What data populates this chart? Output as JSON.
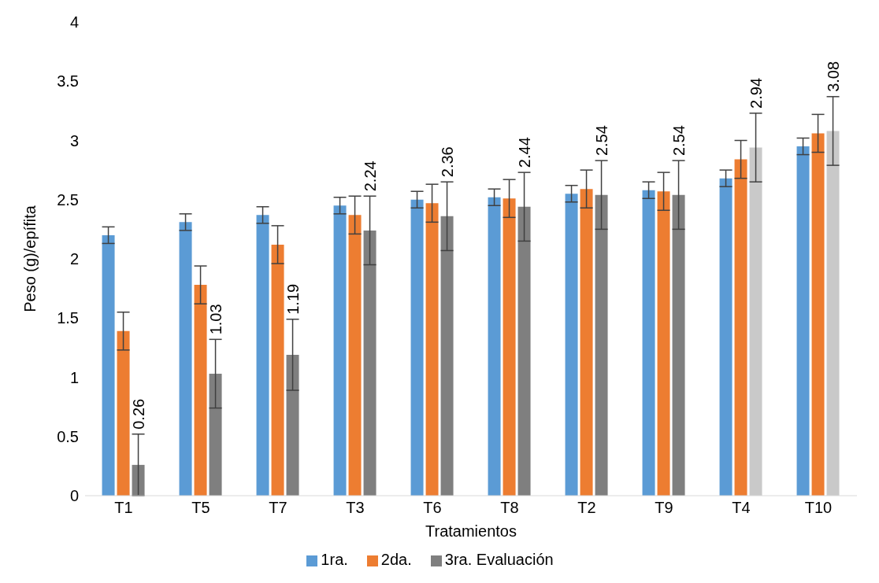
{
  "chart_data": {
    "type": "bar",
    "xlabel": "Tratamientos",
    "ylabel": "Peso (g)/epífita",
    "categories": [
      "T1",
      "T5",
      "T7",
      "T3",
      "T6",
      "T8",
      "T2",
      "T9",
      "T4",
      "T10"
    ],
    "ylim": [
      0,
      4
    ],
    "yticks": [
      0,
      0.5,
      1,
      1.5,
      2,
      2.5,
      3,
      3.5,
      4
    ],
    "grid": false,
    "legend": "bottom",
    "series": [
      {
        "name": "1ra.",
        "color": "#5b9bd5",
        "values": [
          2.2,
          2.31,
          2.37,
          2.45,
          2.5,
          2.52,
          2.55,
          2.58,
          2.68,
          2.95
        ],
        "errors": [
          0.07,
          0.07,
          0.07,
          0.07,
          0.07,
          0.07,
          0.07,
          0.07,
          0.07,
          0.07
        ]
      },
      {
        "name": "2da.",
        "color": "#ed7d31",
        "values": [
          1.39,
          1.78,
          2.12,
          2.37,
          2.47,
          2.51,
          2.59,
          2.57,
          2.84,
          3.06
        ],
        "errors": [
          0.16,
          0.16,
          0.16,
          0.16,
          0.16,
          0.16,
          0.16,
          0.16,
          0.16,
          0.16
        ]
      },
      {
        "name": "3ra. Evaluación",
        "color": "#7f7f7f",
        "colors": [
          "#7f7f7f",
          "#7f7f7f",
          "#7f7f7f",
          "#7f7f7f",
          "#7f7f7f",
          "#7f7f7f",
          "#7f7f7f",
          "#7f7f7f",
          "#c9c9c9",
          "#c9c9c9"
        ],
        "values": [
          0.26,
          1.03,
          1.19,
          2.24,
          2.36,
          2.44,
          2.54,
          2.54,
          2.94,
          3.08
        ],
        "errors": [
          0.26,
          0.29,
          0.3,
          0.29,
          0.29,
          0.29,
          0.29,
          0.29,
          0.29,
          0.29
        ],
        "value_labels": [
          "0.26",
          "1.03",
          "1.19",
          "2.24",
          "2.36",
          "2.44",
          "2.54",
          "2.54",
          "2.94",
          "3.08"
        ]
      }
    ]
  }
}
